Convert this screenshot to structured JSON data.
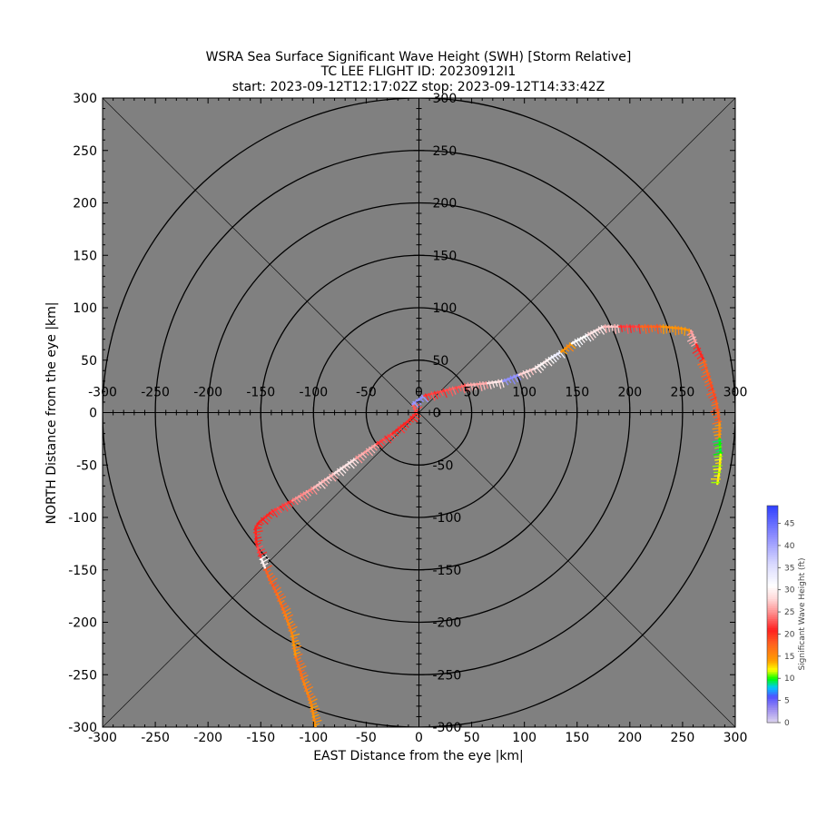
{
  "chart_data": {
    "type": "scatter",
    "title_lines": [
      "WSRA Sea Surface Significant Wave Height (SWH) [Storm Relative]",
      "TC LEE FLIGHT ID: 20230912I1",
      "start: 2023-09-12T12:17:02Z    stop: 2023-09-12T14:33:42Z"
    ],
    "xlabel": "EAST Distance from the eye |km|",
    "ylabel": "NORTH Distance from the eye |km|",
    "xlim": [
      -300,
      300
    ],
    "ylim": [
      -300,
      300
    ],
    "xticks": [
      -300,
      -250,
      -200,
      -150,
      -100,
      -50,
      0,
      50,
      100,
      150,
      200,
      250,
      300
    ],
    "yticks": [
      -300,
      -250,
      -200,
      -150,
      -100,
      -50,
      0,
      50,
      100,
      150,
      200,
      250,
      300
    ],
    "range_rings_km": [
      50,
      100,
      150,
      200,
      250,
      300
    ],
    "background_color": "#808080",
    "colorbar": {
      "label": "Significant Wave Height (ft)",
      "ticks": [
        0,
        5,
        10,
        15,
        20,
        25,
        30,
        35,
        40,
        45
      ],
      "range": [
        0,
        49
      ],
      "stops": [
        {
          "v": 0,
          "c": "#e0d8ee"
        },
        {
          "v": 3,
          "c": "#a090f0"
        },
        {
          "v": 6,
          "c": "#5050ff"
        },
        {
          "v": 8,
          "c": "#00c8ff"
        },
        {
          "v": 10,
          "c": "#00ff00"
        },
        {
          "v": 12,
          "c": "#ffff00"
        },
        {
          "v": 14,
          "c": "#ffa000"
        },
        {
          "v": 18,
          "c": "#ff6020"
        },
        {
          "v": 21,
          "c": "#ff2020"
        },
        {
          "v": 25,
          "c": "#ff9090"
        },
        {
          "v": 28,
          "c": "#ffd8d8"
        },
        {
          "v": 31,
          "c": "#ffffff"
        },
        {
          "v": 36,
          "c": "#d8d8ff"
        },
        {
          "v": 42,
          "c": "#9090ff"
        },
        {
          "v": 49,
          "c": "#3040ff"
        }
      ]
    },
    "track": [
      {
        "x": -98,
        "y": -300,
        "swh": 15
      },
      {
        "x": -102,
        "y": -278,
        "swh": 16
      },
      {
        "x": -110,
        "y": -255,
        "swh": 17
      },
      {
        "x": -117,
        "y": -232,
        "swh": 15
      },
      {
        "x": -120,
        "y": -212,
        "swh": 16
      },
      {
        "x": -127,
        "y": -192,
        "swh": 17
      },
      {
        "x": -135,
        "y": -172,
        "swh": 18
      },
      {
        "x": -142,
        "y": -158,
        "swh": 18
      },
      {
        "x": -146,
        "y": -148,
        "swh": 30
      },
      {
        "x": -150,
        "y": -138,
        "swh": 22
      },
      {
        "x": -154,
        "y": -125,
        "swh": 21
      },
      {
        "x": -155,
        "y": -110,
        "swh": 21
      },
      {
        "x": -152,
        "y": -105,
        "swh": 21
      },
      {
        "x": -140,
        "y": -95,
        "swh": 22
      },
      {
        "x": -120,
        "y": -84,
        "swh": 25
      },
      {
        "x": -100,
        "y": -72,
        "swh": 27
      },
      {
        "x": -80,
        "y": -58,
        "swh": 29
      },
      {
        "x": -60,
        "y": -44,
        "swh": 26
      },
      {
        "x": -40,
        "y": -30,
        "swh": 22
      },
      {
        "x": -25,
        "y": -20,
        "swh": 21
      },
      {
        "x": -10,
        "y": -8,
        "swh": 21
      },
      {
        "x": -2,
        "y": 0,
        "swh": 23
      },
      {
        "x": -6,
        "y": 8,
        "swh": 42
      },
      {
        "x": 5,
        "y": 16,
        "swh": 22
      },
      {
        "x": 25,
        "y": 21,
        "swh": 23
      },
      {
        "x": 45,
        "y": 26,
        "swh": 26
      },
      {
        "x": 65,
        "y": 28,
        "swh": 29
      },
      {
        "x": 80,
        "y": 30,
        "swh": 42
      },
      {
        "x": 95,
        "y": 36,
        "swh": 28
      },
      {
        "x": 110,
        "y": 42,
        "swh": 30
      },
      {
        "x": 125,
        "y": 52,
        "swh": 33
      },
      {
        "x": 135,
        "y": 58,
        "swh": 15
      },
      {
        "x": 145,
        "y": 66,
        "swh": 31
      },
      {
        "x": 160,
        "y": 74,
        "swh": 29
      },
      {
        "x": 175,
        "y": 82,
        "swh": 27
      },
      {
        "x": 190,
        "y": 82,
        "swh": 22
      },
      {
        "x": 210,
        "y": 82,
        "swh": 18
      },
      {
        "x": 230,
        "y": 82,
        "swh": 15
      },
      {
        "x": 250,
        "y": 80,
        "swh": 15
      },
      {
        "x": 258,
        "y": 78,
        "swh": 26
      },
      {
        "x": 263,
        "y": 65,
        "swh": 21
      },
      {
        "x": 270,
        "y": 50,
        "swh": 18
      },
      {
        "x": 276,
        "y": 30,
        "swh": 19
      },
      {
        "x": 282,
        "y": 10,
        "swh": 18
      },
      {
        "x": 285,
        "y": -10,
        "swh": 15
      },
      {
        "x": 285,
        "y": -25,
        "swh": 10
      },
      {
        "x": 286,
        "y": -40,
        "swh": 12
      },
      {
        "x": 285,
        "y": -55,
        "swh": 12
      },
      {
        "x": 283,
        "y": -68,
        "swh": 12
      }
    ]
  }
}
